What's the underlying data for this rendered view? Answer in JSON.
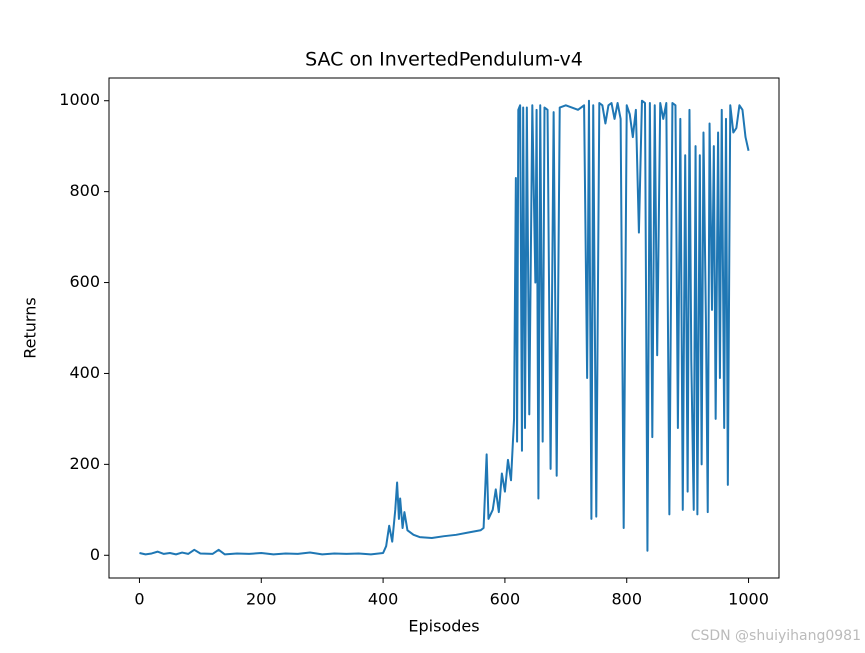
{
  "chart_data": {
    "type": "line",
    "title": "SAC on InvertedPendulum-v4",
    "x_label": "Episodes",
    "y_label": "Returns",
    "watermark": "CSDN @shuiyihang0981",
    "x": [
      0,
      10,
      20,
      30,
      40,
      50,
      60,
      70,
      80,
      90,
      100,
      120,
      130,
      140,
      160,
      180,
      200,
      220,
      240,
      260,
      280,
      300,
      320,
      340,
      360,
      380,
      400,
      405,
      410,
      415,
      420,
      423,
      426,
      428,
      432,
      435,
      440,
      450,
      460,
      480,
      500,
      520,
      540,
      560,
      565,
      570,
      573,
      580,
      585,
      590,
      595,
      600,
      605,
      610,
      615,
      618,
      620,
      622,
      625,
      628,
      630,
      633,
      636,
      640,
      645,
      650,
      652,
      655,
      658,
      662,
      665,
      670,
      675,
      680,
      685,
      690,
      700,
      710,
      720,
      730,
      735,
      738,
      742,
      745,
      750,
      755,
      760,
      765,
      770,
      775,
      780,
      785,
      790,
      795,
      800,
      805,
      810,
      815,
      820,
      825,
      830,
      834,
      838,
      842,
      846,
      850,
      855,
      860,
      865,
      870,
      875,
      880,
      884,
      888,
      892,
      896,
      900,
      903,
      906,
      910,
      913,
      916,
      920,
      923,
      926,
      930,
      933,
      936,
      940,
      943,
      946,
      950,
      953,
      956,
      960,
      963,
      966,
      970,
      975,
      980,
      985,
      990,
      995,
      1000
    ],
    "series": [
      {
        "name": "Returns",
        "color": "#1f77b4",
        "values": [
          5,
          2,
          4,
          8,
          3,
          5,
          2,
          6,
          3,
          12,
          4,
          3,
          12,
          2,
          4,
          3,
          5,
          2,
          4,
          3,
          6,
          2,
          4,
          3,
          4,
          2,
          5,
          20,
          65,
          30,
          100,
          160,
          80,
          125,
          60,
          95,
          55,
          45,
          40,
          38,
          42,
          45,
          50,
          55,
          60,
          222,
          80,
          100,
          145,
          95,
          180,
          140,
          210,
          165,
          300,
          830,
          250,
          980,
          990,
          230,
          985,
          280,
          985,
          310,
          990,
          600,
          980,
          125,
          990,
          250,
          985,
          980,
          190,
          975,
          175,
          985,
          990,
          985,
          980,
          990,
          390,
          1000,
          80,
          990,
          85,
          995,
          990,
          950,
          990,
          995,
          960,
          995,
          960,
          60,
          990,
          970,
          920,
          980,
          710,
          1000,
          995,
          10,
          995,
          260,
          990,
          440,
          995,
          960,
          995,
          90,
          995,
          990,
          280,
          960,
          100,
          880,
          140,
          980,
          430,
          100,
          900,
          90,
          880,
          200,
          930,
          520,
          95,
          950,
          540,
          900,
          300,
          930,
          390,
          980,
          280,
          960,
          155,
          990,
          930,
          940,
          990,
          980,
          920,
          890
        ]
      }
    ],
    "xlim": [
      -50,
      1050
    ],
    "ylim": [
      -50,
      1050
    ],
    "xticks": [
      0,
      200,
      400,
      600,
      800,
      1000
    ],
    "yticks": [
      0,
      200,
      400,
      600,
      800,
      1000
    ]
  }
}
